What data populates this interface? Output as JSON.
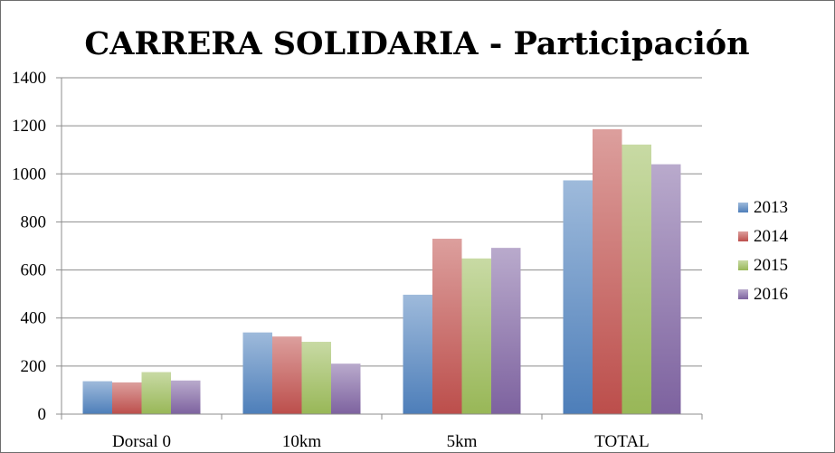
{
  "chart_data": {
    "type": "bar",
    "title": "CARRERA SOLIDARIA - Participación",
    "xlabel": "",
    "ylabel": "",
    "categories": [
      "Dorsal 0",
      "10km",
      "5km",
      "TOTAL"
    ],
    "ylim": [
      0,
      1400
    ],
    "yticks": [
      0,
      200,
      400,
      600,
      800,
      1000,
      1200,
      1400
    ],
    "grid": true,
    "legend_position": "right",
    "series": [
      {
        "name": "2013",
        "values": [
          137,
          340,
          497,
          973
        ],
        "color": "#4f81bd"
      },
      {
        "name": "2014",
        "values": [
          132,
          323,
          730,
          1186
        ],
        "color": "#c0504d"
      },
      {
        "name": "2015",
        "values": [
          175,
          301,
          648,
          1122
        ],
        "color": "#9bbb59"
      },
      {
        "name": "2016",
        "values": [
          140,
          210,
          692,
          1040
        ],
        "color": "#8064a2"
      }
    ]
  }
}
